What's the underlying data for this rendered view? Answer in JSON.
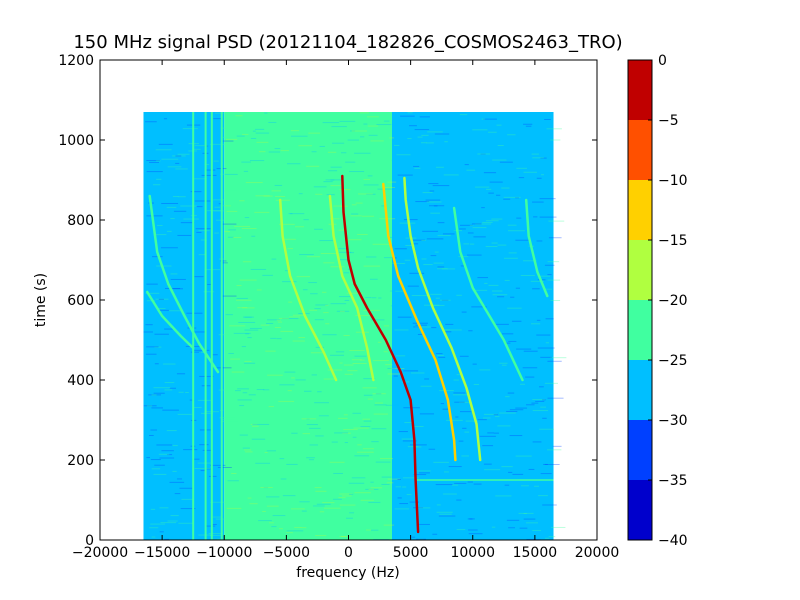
{
  "chart_data": {
    "type": "heatmap",
    "title": "150 MHz signal PSD (20121104_182826_COSMOS2463_TRO)",
    "xlabel": "frequency (Hz)",
    "ylabel": "time (s)",
    "xlim": [
      -20000,
      20000
    ],
    "ylim": [
      0,
      1200
    ],
    "x_ticks": [
      -20000,
      -15000,
      -10000,
      -5000,
      0,
      5000,
      10000,
      15000,
      20000
    ],
    "y_ticks": [
      0,
      200,
      400,
      600,
      800,
      1000,
      1200
    ],
    "data_extent": {
      "x": [
        -16500,
        16500
      ],
      "y": [
        0,
        1070
      ]
    },
    "colorbar": {
      "ticks": [
        0,
        -5,
        -10,
        -15,
        -20,
        -25,
        -30,
        -35,
        -40
      ],
      "levels": [
        {
          "from": -40,
          "to": -35,
          "color": "#0000cc"
        },
        {
          "from": -35,
          "to": -30,
          "color": "#0040ff"
        },
        {
          "from": -30,
          "to": -25,
          "color": "#00bfff"
        },
        {
          "from": -25,
          "to": -20,
          "color": "#40ffa0"
        },
        {
          "from": -20,
          "to": -15,
          "color": "#b0ff40"
        },
        {
          "from": -15,
          "to": -10,
          "color": "#ffd000"
        },
        {
          "from": -10,
          "to": -5,
          "color": "#ff5000"
        },
        {
          "from": -5,
          "to": 0,
          "color": "#c00000"
        }
      ]
    },
    "background_regions": [
      {
        "x": [
          -16500,
          -10000
        ],
        "level": -27
      },
      {
        "x": [
          -10000,
          3500
        ],
        "level": -22
      },
      {
        "x": [
          3500,
          16500
        ],
        "level": -27
      }
    ],
    "traces": [
      {
        "level": -3,
        "points": [
          [
            -500,
            910
          ],
          [
            -400,
            820
          ],
          [
            0,
            700
          ],
          [
            500,
            640
          ],
          [
            1500,
            580
          ],
          [
            3000,
            500
          ],
          [
            4200,
            420
          ],
          [
            5000,
            350
          ],
          [
            5300,
            250
          ],
          [
            5400,
            150
          ],
          [
            5600,
            20
          ]
        ]
      },
      {
        "level": -12,
        "points": [
          [
            2800,
            890
          ],
          [
            3200,
            760
          ],
          [
            4000,
            660
          ],
          [
            5500,
            550
          ],
          [
            7000,
            450
          ],
          [
            8000,
            350
          ],
          [
            8500,
            250
          ],
          [
            8600,
            200
          ]
        ]
      },
      {
        "level": -15,
        "points": [
          [
            4500,
            905
          ],
          [
            4600,
            850
          ],
          [
            5000,
            760
          ],
          [
            5600,
            680
          ],
          [
            6800,
            580
          ],
          [
            8300,
            480
          ],
          [
            9500,
            380
          ],
          [
            10300,
            290
          ],
          [
            10600,
            200
          ]
        ]
      },
      {
        "level": -17,
        "points": [
          [
            -1500,
            860
          ],
          [
            -1200,
            760
          ],
          [
            -500,
            660
          ],
          [
            700,
            580
          ],
          [
            1500,
            480
          ],
          [
            2000,
            400
          ]
        ]
      },
      {
        "level": -17,
        "points": [
          [
            -5500,
            850
          ],
          [
            -5300,
            760
          ],
          [
            -4700,
            660
          ],
          [
            -3500,
            560
          ],
          [
            -2000,
            470
          ],
          [
            -1000,
            400
          ]
        ]
      },
      {
        "level": -22,
        "points": [
          [
            -16000,
            860
          ],
          [
            -15400,
            720
          ],
          [
            -14500,
            640
          ],
          [
            -13200,
            560
          ],
          [
            -12000,
            490
          ],
          [
            -10500,
            420
          ]
        ]
      },
      {
        "level": -22,
        "points": [
          [
            -16200,
            620
          ],
          [
            -15000,
            560
          ],
          [
            -13500,
            510
          ],
          [
            -12500,
            480
          ]
        ]
      },
      {
        "level": -22,
        "points": [
          [
            14300,
            850
          ],
          [
            14500,
            760
          ],
          [
            15200,
            670
          ],
          [
            16000,
            610
          ]
        ]
      },
      {
        "level": -24,
        "points": [
          [
            8500,
            830
          ],
          [
            9000,
            720
          ],
          [
            10000,
            630
          ],
          [
            12500,
            500
          ],
          [
            14000,
            400
          ]
        ]
      }
    ],
    "vertical_lines": [
      {
        "x": -12500,
        "level": -22
      },
      {
        "x": -11500,
        "level": -23
      },
      {
        "x": -11000,
        "level": -21
      },
      {
        "x": -10200,
        "level": -23
      }
    ],
    "horizontal_lines": [
      {
        "y": 150,
        "x": [
          5500,
          16500
        ],
        "level": -24
      }
    ]
  }
}
